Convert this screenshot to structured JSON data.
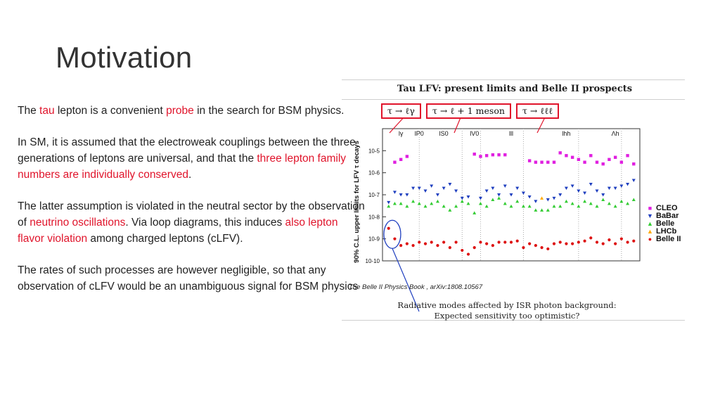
{
  "slide": {
    "title": "Motivation",
    "paragraphs": [
      [
        {
          "t": "The "
        },
        {
          "t": "tau",
          "c": "red"
        },
        {
          "t": " lepton is a convenient "
        },
        {
          "t": "probe",
          "c": "red"
        },
        {
          "t": " in the search for BSM physics."
        }
      ],
      [
        {
          "t": "In SM, it is assumed that the electroweak couplings between the three generations of leptons are universal, and that the "
        },
        {
          "t": "three lepton family numbers are individually conserved",
          "c": "red"
        },
        {
          "t": "."
        }
      ],
      [
        {
          "t": "The latter assumption is violated in the neutral sector by the observation of "
        },
        {
          "t": "neutrino oscillations",
          "c": "red"
        },
        {
          "t": ". Via loop diagrams, this induces "
        },
        {
          "t": "also lepton flavor violation",
          "c": "red"
        },
        {
          "t": " among charged leptons (cLFV)."
        }
      ],
      [
        {
          "t": "The rates of such processes are however negligible, so that any observation of cLFV would be an unambiguous signal for BSM physics"
        }
      ]
    ]
  },
  "figure": {
    "title": "Tau LFV: present limits and Belle II prospects",
    "formula_boxes": [
      "τ → ℓγ",
      "τ → ℓ + 1 meson",
      "τ → ℓℓℓ"
    ],
    "citation": "The Belle II Physics Book , arXiv:1808.10567",
    "caption_lines": [
      "Radiative modes affected by ISR photon background:",
      "Expected sensitivity too optimistic?"
    ]
  },
  "chart_data": {
    "type": "scatter",
    "ylabel": "90% C.L. upper limits for LFV τ decays",
    "yscale": "log",
    "ylim": [
      1e-10,
      0.0001
    ],
    "y_ticks": [
      "10-5",
      "10-6",
      "10-7",
      "10-8",
      "10-9",
      "10-10"
    ],
    "group_labels": [
      "lγ",
      "lP0",
      "lS0",
      "lV0",
      "lll",
      "lhh",
      "Λh"
    ],
    "legend_position": "right",
    "series": [
      {
        "name": "CLEO",
        "color": "#e020e0",
        "marker": "square",
        "points": [
          [
            2,
            3e-06
          ],
          [
            3,
            4e-06
          ],
          [
            4,
            5.5e-06
          ],
          [
            15,
            7e-06
          ],
          [
            16,
            5.5e-06
          ],
          [
            17,
            6e-06
          ],
          [
            18,
            6.5e-06
          ],
          [
            19,
            6.5e-06
          ],
          [
            20,
            6.5e-06
          ],
          [
            24,
            3.5e-06
          ],
          [
            25,
            3e-06
          ],
          [
            26,
            3e-06
          ],
          [
            27,
            3e-06
          ],
          [
            28,
            3e-06
          ],
          [
            29,
            8e-06
          ],
          [
            30,
            6e-06
          ],
          [
            31,
            5e-06
          ],
          [
            32,
            4e-06
          ],
          [
            33,
            3e-06
          ],
          [
            34,
            6e-06
          ],
          [
            35,
            3e-06
          ],
          [
            36,
            2.5e-06
          ],
          [
            37,
            4e-06
          ],
          [
            38,
            5e-06
          ],
          [
            39,
            3e-06
          ],
          [
            40,
            6e-06
          ],
          [
            41,
            2.5e-06
          ]
        ]
      },
      {
        "name": "BaBar",
        "color": "#1f3fbf",
        "marker": "triangle-down",
        "points": [
          [
            1,
            4.5e-08
          ],
          [
            2,
            1.3e-07
          ],
          [
            3,
            1e-07
          ],
          [
            4,
            1e-07
          ],
          [
            5,
            2e-07
          ],
          [
            6,
            2e-07
          ],
          [
            7,
            1.5e-07
          ],
          [
            8,
            2.5e-07
          ],
          [
            9,
            1e-07
          ],
          [
            10,
            2e-07
          ],
          [
            11,
            3e-07
          ],
          [
            12,
            1.5e-07
          ],
          [
            13,
            7e-08
          ],
          [
            14,
            8e-08
          ],
          [
            16,
            7e-08
          ],
          [
            17,
            1.5e-07
          ],
          [
            18,
            2e-07
          ],
          [
            19,
            1e-07
          ],
          [
            20,
            2.5e-07
          ],
          [
            21,
            1e-07
          ],
          [
            22,
            2e-07
          ],
          [
            23,
            1.2e-07
          ],
          [
            24,
            8e-08
          ],
          [
            25,
            5e-08
          ],
          [
            27,
            6e-08
          ],
          [
            28,
            7e-08
          ],
          [
            29,
            1e-07
          ],
          [
            30,
            2e-07
          ],
          [
            31,
            2.5e-07
          ],
          [
            32,
            1.5e-07
          ],
          [
            33,
            1.2e-07
          ],
          [
            34,
            3e-07
          ],
          [
            35,
            1.5e-07
          ],
          [
            36,
            1e-07
          ],
          [
            37,
            2e-07
          ],
          [
            38,
            2e-07
          ],
          [
            39,
            2.5e-07
          ],
          [
            40,
            3e-07
          ],
          [
            41,
            4.5e-07
          ]
        ]
      },
      {
        "name": "Belle",
        "color": "#33cc33",
        "marker": "triangle-up",
        "points": [
          [
            1,
            3e-08
          ],
          [
            2,
            4e-08
          ],
          [
            3,
            4e-08
          ],
          [
            4,
            3e-08
          ],
          [
            5,
            5e-08
          ],
          [
            6,
            4e-08
          ],
          [
            7,
            3e-08
          ],
          [
            8,
            4e-08
          ],
          [
            9,
            5e-08
          ],
          [
            10,
            3e-08
          ],
          [
            11,
            2e-08
          ],
          [
            12,
            3e-08
          ],
          [
            13,
            5e-08
          ],
          [
            14,
            4e-08
          ],
          [
            15,
            1.5e-08
          ],
          [
            16,
            4e-08
          ],
          [
            17,
            3e-08
          ],
          [
            18,
            6e-08
          ],
          [
            19,
            7e-08
          ],
          [
            20,
            4e-08
          ],
          [
            21,
            3e-08
          ],
          [
            22,
            5e-08
          ],
          [
            23,
            3e-08
          ],
          [
            24,
            3e-08
          ],
          [
            25,
            2e-08
          ],
          [
            26,
            2e-08
          ],
          [
            27,
            2e-08
          ],
          [
            28,
            3e-08
          ],
          [
            29,
            3e-08
          ],
          [
            30,
            5e-08
          ],
          [
            31,
            4e-08
          ],
          [
            32,
            3e-08
          ],
          [
            33,
            5e-08
          ],
          [
            34,
            4e-08
          ],
          [
            35,
            3e-08
          ],
          [
            36,
            6e-08
          ],
          [
            37,
            4e-08
          ],
          [
            38,
            3e-08
          ],
          [
            39,
            5e-08
          ],
          [
            40,
            4e-08
          ],
          [
            41,
            6e-08
          ]
        ]
      },
      {
        "name": "LHCb",
        "color": "#ffaa00",
        "marker": "triangle-up",
        "points": [
          [
            26,
            7e-08
          ]
        ]
      },
      {
        "name": "Belle II",
        "color": "#dd1111",
        "marker": "circle",
        "points": [
          [
            1,
            3e-09
          ],
          [
            2,
            1e-09
          ],
          [
            3,
            5e-10
          ],
          [
            4,
            6e-10
          ],
          [
            5,
            5e-10
          ],
          [
            6,
            7e-10
          ],
          [
            7,
            6e-10
          ],
          [
            8,
            7e-10
          ],
          [
            9,
            5e-10
          ],
          [
            10,
            7e-10
          ],
          [
            11,
            4e-10
          ],
          [
            12,
            7e-10
          ],
          [
            13,
            3e-10
          ],
          [
            14,
            2e-10
          ],
          [
            15,
            4e-10
          ],
          [
            16,
            7e-10
          ],
          [
            17,
            6e-10
          ],
          [
            18,
            5e-10
          ],
          [
            19,
            7e-10
          ],
          [
            20,
            7e-10
          ],
          [
            21,
            7e-10
          ],
          [
            22,
            8e-10
          ],
          [
            23,
            4e-10
          ],
          [
            24,
            6e-10
          ],
          [
            25,
            5e-10
          ],
          [
            26,
            4e-10
          ],
          [
            27,
            3.5e-10
          ],
          [
            28,
            6e-10
          ],
          [
            29,
            7e-10
          ],
          [
            30,
            6e-10
          ],
          [
            31,
            6e-10
          ],
          [
            32,
            7e-10
          ],
          [
            33,
            8e-10
          ],
          [
            34,
            1.1e-09
          ],
          [
            35,
            7e-10
          ],
          [
            36,
            6e-10
          ],
          [
            37,
            9e-10
          ],
          [
            38,
            6e-10
          ],
          [
            39,
            1e-09
          ],
          [
            40,
            7e-10
          ],
          [
            41,
            8e-10
          ]
        ]
      }
    ]
  }
}
